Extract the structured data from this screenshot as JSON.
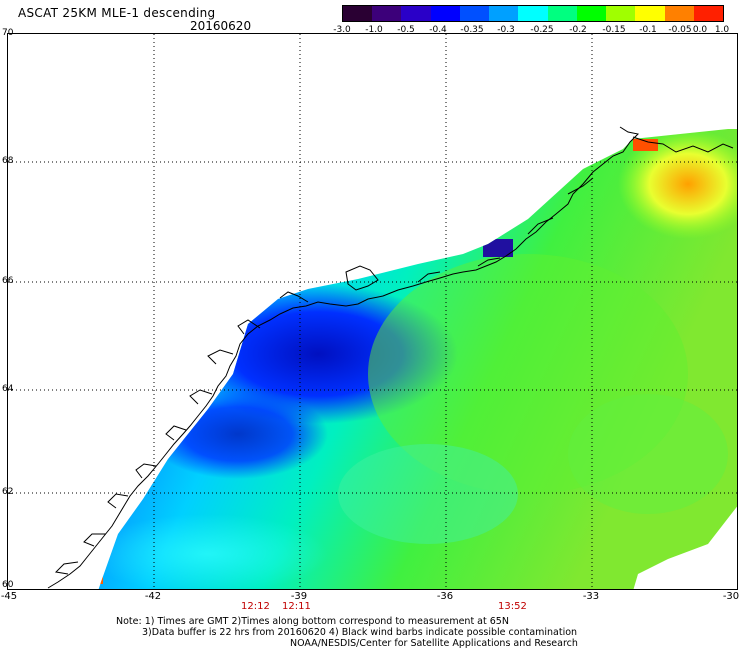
{
  "header": {
    "title": "ASCAT 25KM MLE-1 descending",
    "date": "20160620"
  },
  "colorbar": {
    "labels": [
      "-3.0",
      "-1.0",
      "-0.5",
      "-0.4",
      "-0.35",
      "-0.3",
      "-0.25",
      "-0.2",
      "-0.15",
      "-0.1",
      "-0.05",
      "0.0",
      "1.0"
    ],
    "colors": [
      "#2a0033",
      "#3c007a",
      "#2a00c8",
      "#0000ff",
      "#0050ff",
      "#00a0ff",
      "#00ffff",
      "#00ff80",
      "#00ff00",
      "#a0ff00",
      "#ffff00",
      "#ff8000",
      "#ff2000"
    ]
  },
  "map": {
    "lat_labels": [
      "70",
      "68",
      "66",
      "64",
      "62",
      "60"
    ],
    "lon_labels": [
      "-45",
      "-42",
      "-39",
      "-36",
      "-33",
      "-30"
    ],
    "time_labels": [
      "12:12",
      "12:11",
      "13:52"
    ]
  },
  "notes": {
    "line1": "Note: 1) Times are GMT 2)Times along bottom correspond to measurement at 65N",
    "line2": "3)Data buffer is 22 hrs from 20160620 4) Black wind barbs indicate possible contamination",
    "line3": "NOAA/NESDIS/Center for Satellite Applications and Research"
  }
}
